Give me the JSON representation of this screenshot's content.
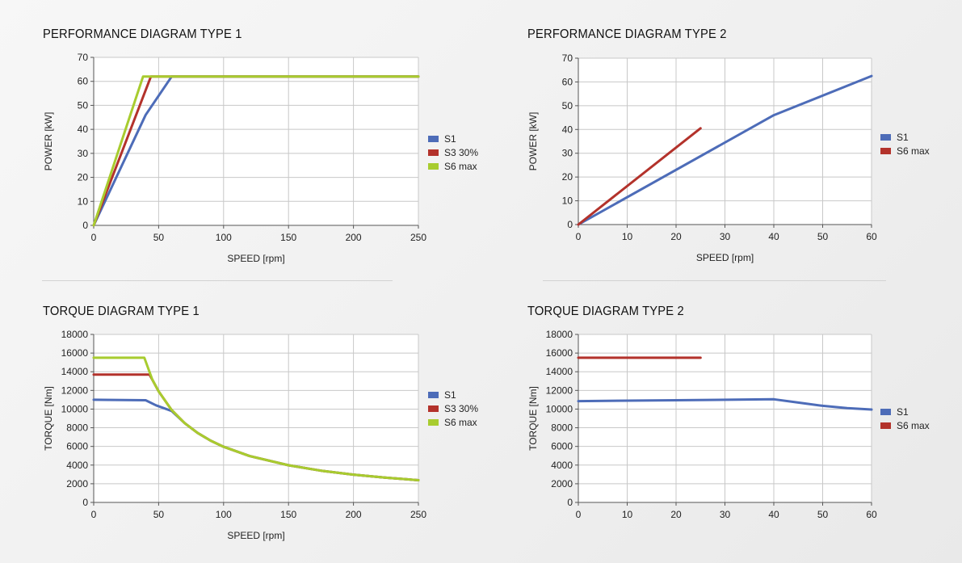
{
  "colors": {
    "s1": "#4d6cb8",
    "s3": "#b3322b",
    "s6": "#a8cc2f"
  },
  "chart_data": [
    {
      "type": "line",
      "title": "PERFORMANCE DIAGRAM TYPE 1",
      "xlabel": "SPEED [rpm]",
      "ylabel": "POWER [kW]",
      "xlim": [
        0,
        250
      ],
      "ylim": [
        0,
        70
      ],
      "xticks": [
        0,
        50,
        100,
        150,
        200,
        250
      ],
      "yticks": [
        0,
        10,
        20,
        30,
        40,
        50,
        60,
        70
      ],
      "legend_position": "right",
      "series": [
        {
          "name": "S1",
          "color": "#4d6cb8",
          "points": [
            [
              0,
              0
            ],
            [
              40,
              46
            ],
            [
              60,
              62
            ],
            [
              250,
              62
            ]
          ]
        },
        {
          "name": "S3 30%",
          "color": "#b3322b",
          "points": [
            [
              0,
              0
            ],
            [
              44,
              62
            ],
            [
              250,
              62
            ]
          ]
        },
        {
          "name": "S6 max",
          "color": "#a8cc2f",
          "points": [
            [
              0,
              0
            ],
            [
              38,
              62
            ],
            [
              250,
              62
            ]
          ]
        }
      ]
    },
    {
      "type": "line",
      "title": "PERFORMANCE DIAGRAM TYPE 2",
      "xlabel": "SPEED [rpm]",
      "ylabel": "POWER [kW]",
      "xlim": [
        0,
        60
      ],
      "ylim": [
        0,
        70
      ],
      "xticks": [
        0,
        10,
        20,
        30,
        40,
        50,
        60
      ],
      "yticks": [
        0,
        10,
        20,
        30,
        40,
        50,
        60,
        70
      ],
      "legend_position": "right",
      "series": [
        {
          "name": "S1",
          "color": "#4d6cb8",
          "points": [
            [
              0,
              0
            ],
            [
              40,
              46
            ],
            [
              60,
              62.5
            ]
          ]
        },
        {
          "name": "S6 max",
          "color": "#b3322b",
          "points": [
            [
              0,
              0
            ],
            [
              25,
              40.5
            ]
          ]
        }
      ]
    },
    {
      "type": "line",
      "title": "TORQUE DIAGRAM TYPE 1",
      "xlabel": "SPEED [rpm]",
      "ylabel": "TORQUE [Nm]",
      "xlim": [
        0,
        250
      ],
      "ylim": [
        0,
        18000
      ],
      "xticks": [
        0,
        50,
        100,
        150,
        200,
        250
      ],
      "yticks": [
        0,
        2000,
        4000,
        6000,
        8000,
        10000,
        12000,
        14000,
        16000,
        18000
      ],
      "legend_position": "right",
      "series": [
        {
          "name": "S1",
          "color": "#4d6cb8",
          "points": [
            [
              0,
              11000
            ],
            [
              40,
              10950
            ],
            [
              48,
              10400
            ],
            [
              60,
              9800
            ],
            [
              70,
              8500
            ],
            [
              80,
              7450
            ],
            [
              90,
              6620
            ],
            [
              100,
              5960
            ],
            [
              120,
              4970
            ],
            [
              150,
              3980
            ],
            [
              175,
              3400
            ],
            [
              200,
              2980
            ],
            [
              225,
              2650
            ],
            [
              250,
              2380
            ]
          ]
        },
        {
          "name": "S3 30%",
          "color": "#b3322b",
          "points": [
            [
              0,
              13700
            ],
            [
              43,
              13700
            ],
            [
              50,
              11900
            ],
            [
              60,
              9900
            ],
            [
              70,
              8500
            ],
            [
              80,
              7450
            ],
            [
              90,
              6620
            ],
            [
              100,
              5960
            ],
            [
              120,
              4970
            ],
            [
              150,
              3980
            ],
            [
              175,
              3400
            ],
            [
              200,
              2980
            ],
            [
              225,
              2650
            ],
            [
              250,
              2380
            ]
          ]
        },
        {
          "name": "S6 max",
          "color": "#a8cc2f",
          "points": [
            [
              0,
              15500
            ],
            [
              39,
              15500
            ],
            [
              45,
              13200
            ],
            [
              50,
              11900
            ],
            [
              60,
              9900
            ],
            [
              70,
              8500
            ],
            [
              80,
              7450
            ],
            [
              90,
              6620
            ],
            [
              100,
              5960
            ],
            [
              120,
              4970
            ],
            [
              150,
              3980
            ],
            [
              175,
              3400
            ],
            [
              200,
              2980
            ],
            [
              225,
              2650
            ],
            [
              250,
              2380
            ]
          ]
        }
      ]
    },
    {
      "type": "line",
      "title": "TORQUE DIAGRAM TYPE 2",
      "xlabel": "",
      "ylabel": "TORQUE [Nm]",
      "xlim": [
        0,
        60
      ],
      "ylim": [
        0,
        18000
      ],
      "xticks": [
        0,
        10,
        20,
        30,
        40,
        50,
        60
      ],
      "yticks": [
        0,
        2000,
        4000,
        6000,
        8000,
        10000,
        12000,
        14000,
        16000,
        18000
      ],
      "legend_position": "right",
      "series": [
        {
          "name": "S1",
          "color": "#4d6cb8",
          "points": [
            [
              0,
              10850
            ],
            [
              20,
              10950
            ],
            [
              40,
              11050
            ],
            [
              45,
              10700
            ],
            [
              50,
              10350
            ],
            [
              55,
              10100
            ],
            [
              60,
              9950
            ]
          ]
        },
        {
          "name": "S6 max",
          "color": "#b3322b",
          "points": [
            [
              0,
              15500
            ],
            [
              25,
              15500
            ]
          ]
        }
      ]
    }
  ]
}
